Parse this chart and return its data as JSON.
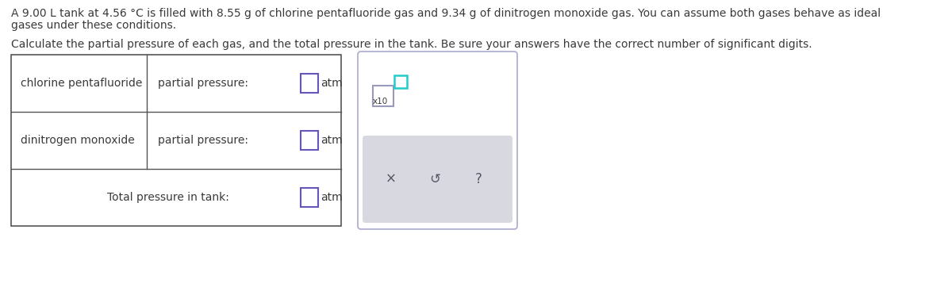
{
  "paragraph1_line1": "A 9.00 L tank at 4.56 °C is filled with 8.55 g of chlorine pentafluoride gas and 9.34 g of dinitrogen monoxide gas. You can assume both gases behave as ideal",
  "paragraph1_line2": "gases under these conditions.",
  "paragraph2": "Calculate the partial pressure of each gas, and the total pressure in the tank. Be sure your answers have the correct number of significant digits.",
  "row1_label": "chlorine pentafluoride",
  "row1_field": "partial pressure:",
  "row1_unit": "atm",
  "row2_label": "dinitrogen monoxide",
  "row2_field": "partial pressure:",
  "row2_unit": "atm",
  "row3_label": "Total pressure in tank:",
  "row3_unit": "atm",
  "text_color": "#3a3a3a",
  "table_border_color": "#555555",
  "input_box_color": "#6655bb",
  "panel_bg": "#ffffff",
  "panel_border_color": "#aaaacc",
  "btn_bg_color": "#d8d8e0",
  "btn_text_color": "#555566",
  "exponent_box_color": "#22cccc",
  "x10_box_color": "#9999bb",
  "font_size_para": 10.0,
  "font_size_table": 10.0,
  "font_size_btn": 12.0
}
